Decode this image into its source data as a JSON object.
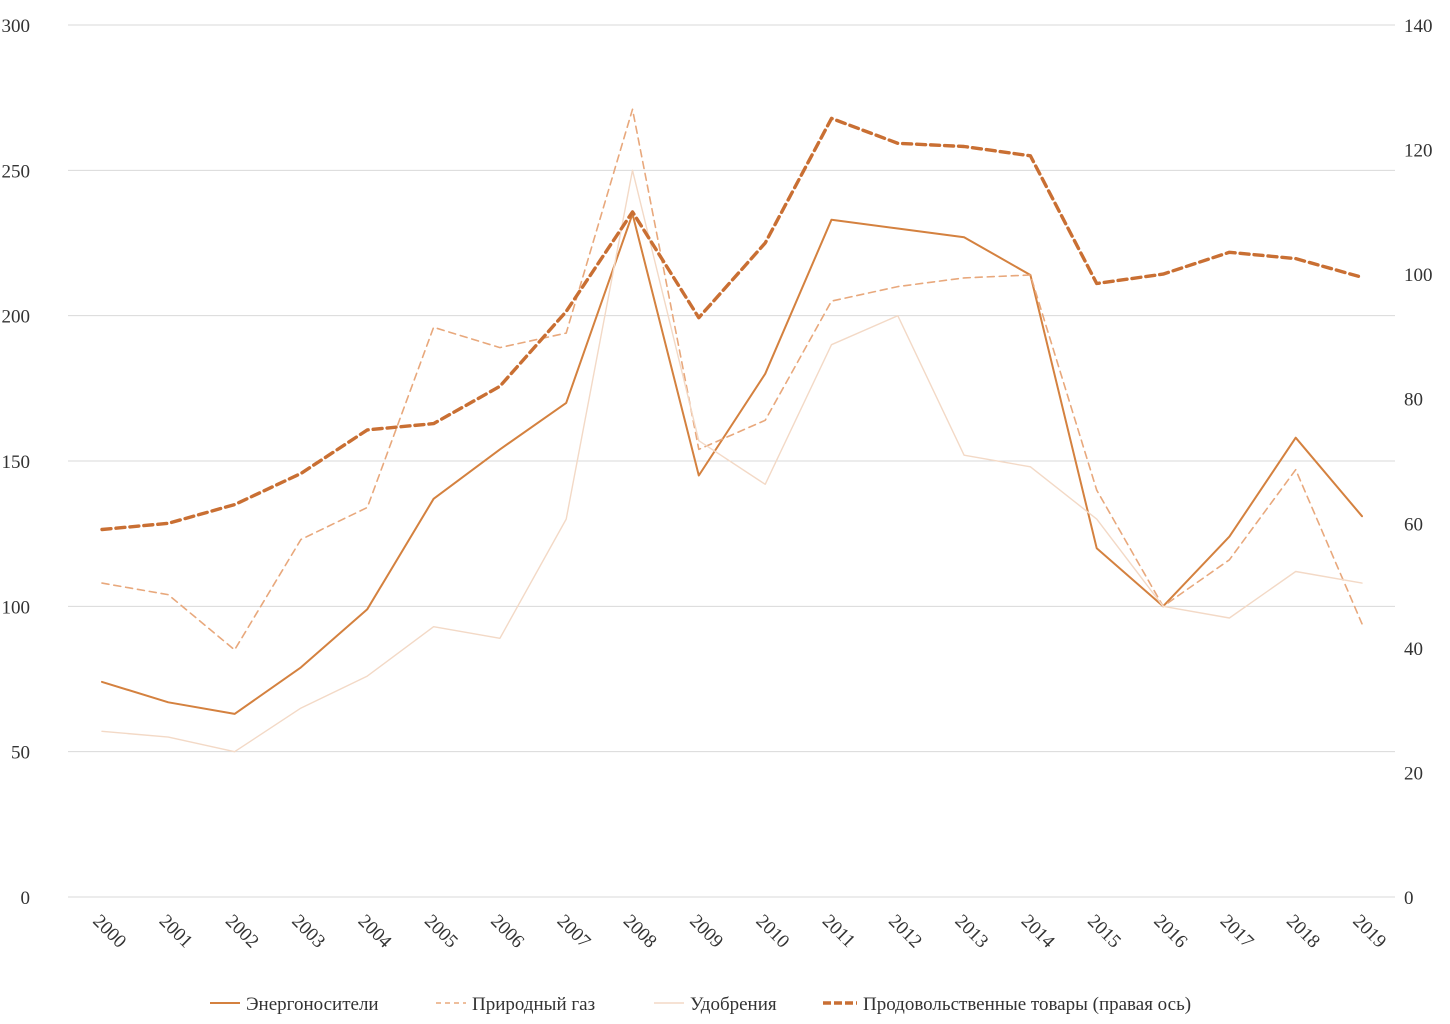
{
  "chart_data": {
    "type": "line",
    "title": "",
    "categories": [
      "2000",
      "2001",
      "2002",
      "2003",
      "2004",
      "2005",
      "2006",
      "2007",
      "2008",
      "2009",
      "2010",
      "2011",
      "2012",
      "2013",
      "2014",
      "2015",
      "2016",
      "2017",
      "2018",
      "2019"
    ],
    "y_left": {
      "min": 0,
      "max": 300,
      "ticks": [
        0,
        50,
        100,
        150,
        200,
        250,
        300
      ]
    },
    "y_right": {
      "min": 0,
      "max": 140,
      "ticks": [
        0,
        20,
        40,
        60,
        80,
        100,
        120,
        140
      ]
    },
    "grid": true,
    "legend_position": "bottom",
    "series": [
      {
        "name": "Энергоносители",
        "axis": "left",
        "style": "solid",
        "color": "#D4813F",
        "values": [
          74,
          67,
          63,
          79,
          99,
          137,
          154,
          170,
          235,
          145,
          180,
          233,
          230,
          227,
          214,
          120,
          100,
          124,
          158,
          131
        ]
      },
      {
        "name": "Природный газ",
        "axis": "left",
        "style": "dashed",
        "color": "#E8A87C",
        "values": [
          108,
          104,
          85,
          123,
          134,
          196,
          189,
          194,
          271,
          154,
          164,
          205,
          210,
          213,
          214,
          140,
          100,
          116,
          147,
          94
        ]
      },
      {
        "name": "Удобрения",
        "axis": "left",
        "style": "thin",
        "color": "#F3D9C6",
        "values": [
          57,
          55,
          50,
          65,
          76,
          93,
          89,
          130,
          250,
          157,
          142,
          190,
          200,
          152,
          148,
          130,
          100,
          96,
          112,
          108
        ]
      },
      {
        "name": "Продовольственные товары (правая ось)",
        "axis": "right",
        "style": "bold-dashed",
        "color": "#C96F33",
        "values": [
          59,
          60,
          63,
          68,
          75,
          76,
          82,
          94,
          110,
          93,
          105,
          125,
          121,
          120.5,
          119,
          98.5,
          100,
          103.5,
          102.5,
          99.5
        ]
      }
    ]
  }
}
